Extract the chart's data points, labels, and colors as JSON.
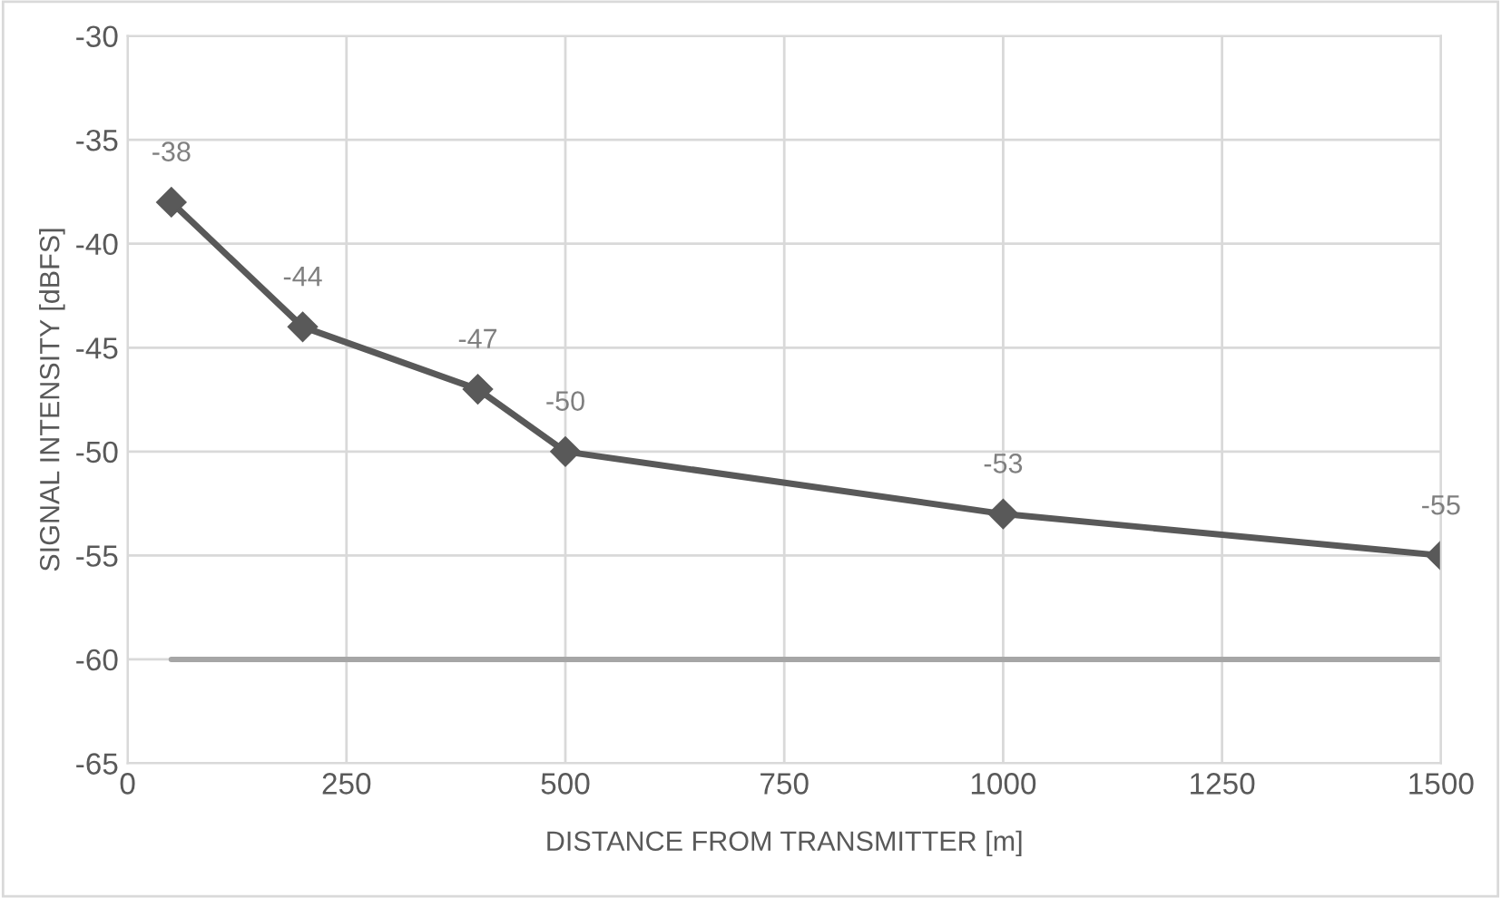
{
  "chart_data": {
    "type": "line",
    "xlabel": "DISTANCE FROM TRANSMITTER [m]",
    "ylabel": "SIGNAL INTENSITY [dBFS]",
    "x": [
      50,
      200,
      400,
      500,
      1000,
      1500
    ],
    "series": [
      {
        "color": "#595959",
        "values": [
          -38,
          -44,
          -47,
          -50,
          -53,
          -55
        ],
        "marker": "diamond",
        "data_labels": true
      },
      {
        "color": "#a6a6a6",
        "x": [
          50,
          1500
        ],
        "values": [
          -60,
          -60
        ],
        "marker": "none",
        "data_labels": false
      }
    ],
    "xlim": [
      0,
      1500
    ],
    "xticks": [
      0,
      250,
      500,
      750,
      1000,
      1250,
      1500
    ],
    "ylim": [
      -65,
      -30
    ],
    "yticks": [
      -65,
      -60,
      -55,
      -50,
      -45,
      -40,
      -35,
      -30
    ],
    "grid": true,
    "line_style": "solid"
  }
}
